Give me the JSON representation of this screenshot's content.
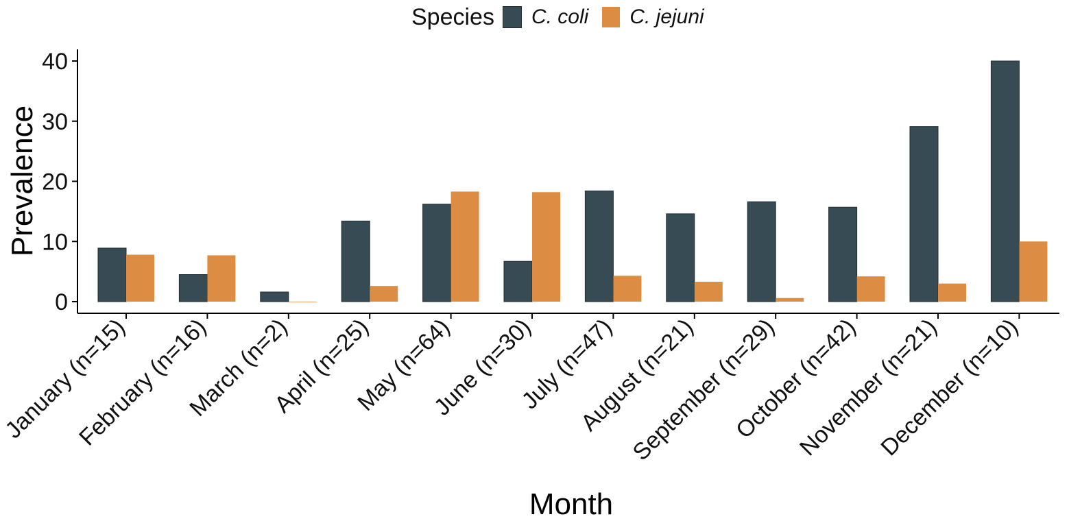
{
  "chart_data": {
    "type": "bar",
    "title": "",
    "xlabel": "Month",
    "ylabel": "Prevalence",
    "ylim": [
      0,
      42
    ],
    "yticks": [
      0,
      10,
      20,
      30,
      40
    ],
    "categories": [
      "January (n=15)",
      "February (n=16)",
      "March (n=2)",
      "April (n=25)",
      "May (n=64)",
      "June (n=30)",
      "July (n=47)",
      "August (n=21)",
      "September (n=29)",
      "October (n=42)",
      "November (n=21)",
      "December (n=10)"
    ],
    "legend": {
      "title": "Species",
      "position": "top"
    },
    "series": [
      {
        "name": "C. coli",
        "color": "#364b53",
        "values": [
          8.9,
          4.5,
          1.6,
          13.4,
          16.2,
          6.7,
          18.4,
          14.6,
          16.6,
          15.7,
          29.1,
          40.0
        ]
      },
      {
        "name": "C. jejuni",
        "color": "#dc8d43",
        "values": [
          7.8,
          7.7,
          0.0,
          2.6,
          18.3,
          18.2,
          4.3,
          3.3,
          0.6,
          4.2,
          3.0,
          10.0
        ]
      }
    ]
  }
}
